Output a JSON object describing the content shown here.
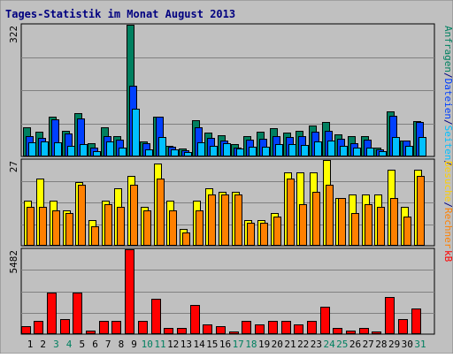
{
  "chart_data": [
    {
      "type": "bar",
      "title": "Tages-Statistik im Monat August 2013",
      "categories": [
        "1",
        "2",
        "3",
        "4",
        "5",
        "6",
        "7",
        "8",
        "9",
        "10",
        "11",
        "12",
        "13",
        "14",
        "15",
        "16",
        "17",
        "18",
        "19",
        "20",
        "21",
        "22",
        "23",
        "24",
        "25",
        "26",
        "27",
        "28",
        "29",
        "30",
        "31"
      ],
      "weekend_days": [
        "3",
        "4",
        "10",
        "11",
        "17",
        "18",
        "24",
        "25",
        "31"
      ],
      "ymax_label": "322",
      "ylim": [
        0,
        322
      ],
      "right_axis_labels": [
        {
          "text": "Anfragen",
          "color": "#008060"
        },
        {
          "text": "/",
          "color": "#000080"
        },
        {
          "text": "Dateien",
          "color": "#0040ff"
        },
        {
          "text": "/",
          "color": "#000080"
        },
        {
          "text": "Seiten",
          "color": "#00c0ff"
        },
        {
          "text": "/",
          "color": "#000080"
        }
      ],
      "series": [
        {
          "name": "Anfragen",
          "color": "#008060",
          "values": [
            69,
            58,
            96,
            62,
            104,
            30,
            70,
            48,
            322,
            34,
            96,
            24,
            17,
            88,
            57,
            51,
            28,
            47,
            59,
            68,
            57,
            60,
            73,
            82,
            53,
            48,
            48,
            20,
            108,
            38,
            84
          ]
        },
        {
          "name": "Dateien",
          "color": "#0040ff",
          "values": [
            47,
            44,
            89,
            55,
            92,
            20,
            47,
            40,
            171,
            30,
            95,
            21,
            13,
            69,
            44,
            38,
            20,
            39,
            42,
            47,
            46,
            48,
            59,
            62,
            41,
            31,
            39,
            16,
            98,
            36,
            82
          ]
        },
        {
          "name": "Seiten",
          "color": "#00c0ff",
          "values": [
            33,
            35,
            33,
            25,
            29,
            10,
            35,
            20,
            116,
            15,
            46,
            15,
            9,
            32,
            24,
            31,
            17,
            22,
            22,
            29,
            29,
            27,
            35,
            38,
            23,
            20,
            19,
            10,
            46,
            23,
            45
          ]
        }
      ]
    },
    {
      "type": "bar",
      "categories": [
        "1",
        "2",
        "3",
        "4",
        "5",
        "6",
        "7",
        "8",
        "9",
        "10",
        "11",
        "12",
        "13",
        "14",
        "15",
        "16",
        "17",
        "18",
        "19",
        "20",
        "21",
        "22",
        "23",
        "24",
        "25",
        "26",
        "27",
        "28",
        "29",
        "30",
        "31"
      ],
      "ymax_label": "27",
      "ylim": [
        0,
        27
      ],
      "right_axis_labels": [
        {
          "text": "Besuche",
          "color": "#ffd000"
        },
        {
          "text": "/",
          "color": "#000080"
        },
        {
          "text": "Rechner",
          "color": "#ff8000"
        }
      ],
      "series": [
        {
          "name": "Besuche",
          "color": "#ffff00",
          "values": [
            14,
            21,
            14,
            11,
            20,
            8,
            14,
            18,
            22,
            12,
            26,
            14,
            5,
            14,
            18,
            17,
            17,
            8,
            8,
            10,
            23,
            23,
            23,
            27,
            15,
            16,
            16,
            16,
            24,
            12,
            24
          ]
        },
        {
          "name": "Rechner",
          "color": "#ff8000",
          "values": [
            12,
            12,
            11,
            10,
            19,
            6,
            13,
            12,
            19,
            11,
            21,
            11,
            4,
            11,
            16,
            16,
            16,
            7,
            7,
            9,
            21,
            13,
            17,
            19,
            15,
            10,
            13,
            12,
            15,
            9,
            22
          ]
        }
      ]
    },
    {
      "type": "bar",
      "categories": [
        "1",
        "2",
        "3",
        "4",
        "5",
        "6",
        "7",
        "8",
        "9",
        "10",
        "11",
        "12",
        "13",
        "14",
        "15",
        "16",
        "17",
        "18",
        "19",
        "20",
        "21",
        "22",
        "23",
        "24",
        "25",
        "26",
        "27",
        "28",
        "29",
        "30",
        "31"
      ],
      "ymax_label": "5482",
      "ylim": [
        0,
        5482
      ],
      "right_axis_labels": [
        {
          "text": "kB",
          "color": "#ff0000"
        }
      ],
      "series": [
        {
          "name": "kB",
          "color": "#ff0000",
          "values": [
            485,
            782,
            2657,
            897,
            2657,
            168,
            782,
            782,
            5482,
            782,
            2245,
            348,
            348,
            1871,
            553,
            485,
            96,
            782,
            553,
            782,
            782,
            553,
            782,
            1743,
            348,
            168,
            348,
            96,
            2374,
            897,
            1615
          ]
        }
      ]
    }
  ]
}
